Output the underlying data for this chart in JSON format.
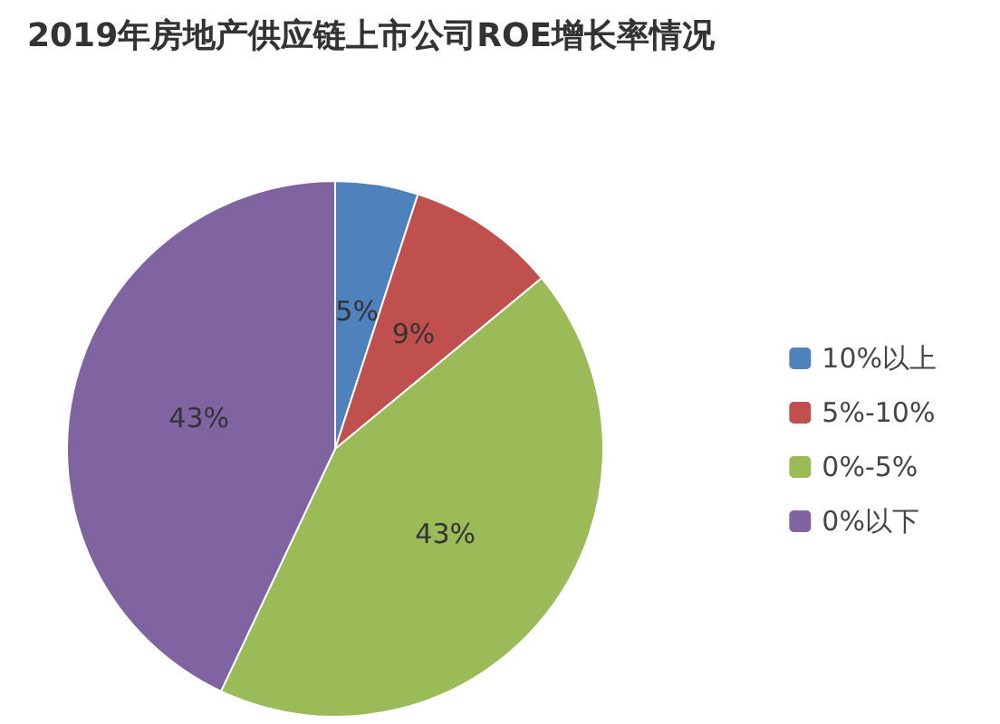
{
  "chart_data": {
    "type": "pie",
    "title": "2019年房地产供应链上市公司ROE增长率情况",
    "categories": [
      "10%以上",
      "5%-10%",
      "0%-5%",
      "0%以下"
    ],
    "values": [
      5,
      9,
      43,
      43
    ],
    "colors": [
      "#4f81bd",
      "#c0504d",
      "#9bbb59",
      "#8064a2"
    ],
    "value_labels": [
      "5%",
      "9%",
      "43%",
      "43%"
    ],
    "legend": "right"
  }
}
